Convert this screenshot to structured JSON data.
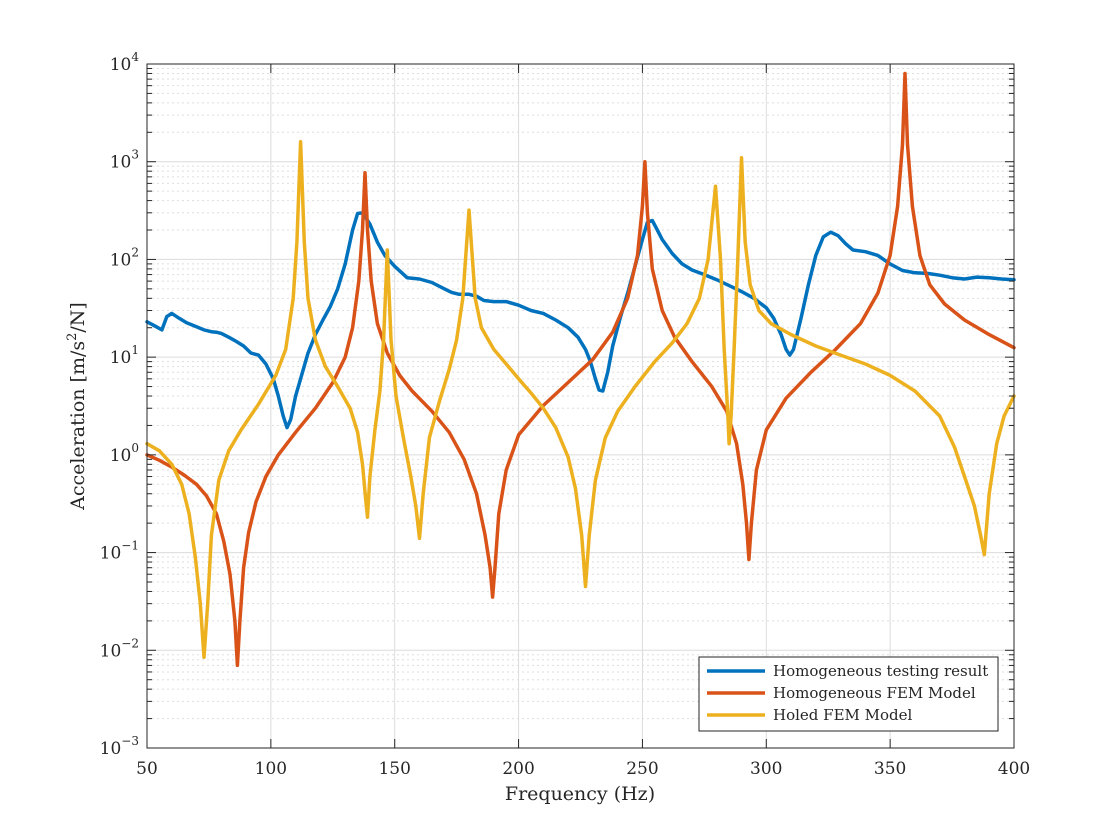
{
  "chart_data": {
    "type": "line",
    "title": "",
    "xlabel": "Frequency (Hz)",
    "ylabel": "Acceleration [m/s^2/N]",
    "ylabel_parts": {
      "main": "Acceleration [m/s",
      "sup": "2",
      "tail": "/N]"
    },
    "xscale": "linear",
    "yscale": "log",
    "xlim": [
      50,
      400
    ],
    "ylim": [
      0.001,
      10000
    ],
    "xticks": [
      50,
      100,
      150,
      200,
      250,
      300,
      350,
      400
    ],
    "yticks": [
      {
        "value": 0.001,
        "base": "10",
        "exp": "−3"
      },
      {
        "value": 0.01,
        "base": "10",
        "exp": "−2"
      },
      {
        "value": 0.1,
        "base": "10",
        "exp": "−1"
      },
      {
        "value": 1,
        "base": "10",
        "exp": "0"
      },
      {
        "value": 10,
        "base": "10",
        "exp": "1"
      },
      {
        "value": 100,
        "base": "10",
        "exp": "2"
      },
      {
        "value": 1000,
        "base": "10",
        "exp": "3"
      },
      {
        "value": 10000,
        "base": "10",
        "exp": "4"
      }
    ],
    "grid": true,
    "minor_grid": true,
    "legend_position": "bottom-right",
    "series": [
      {
        "name": "Homogeneous testing result",
        "color": "#0072BD",
        "points": [
          [
            50,
            23
          ],
          [
            53,
            21
          ],
          [
            56,
            19
          ],
          [
            58,
            26
          ],
          [
            60,
            28
          ],
          [
            63,
            25
          ],
          [
            66,
            22.5
          ],
          [
            70,
            20.5
          ],
          [
            73,
            19
          ],
          [
            76,
            18.2
          ],
          [
            78,
            18
          ],
          [
            80,
            17.5
          ],
          [
            83,
            16
          ],
          [
            86,
            14.5
          ],
          [
            89,
            13
          ],
          [
            92,
            11
          ],
          [
            95,
            10.5
          ],
          [
            98,
            8.5
          ],
          [
            101,
            6
          ],
          [
            103,
            4
          ],
          [
            105,
            2.5
          ],
          [
            106.5,
            1.9
          ],
          [
            108,
            2.3
          ],
          [
            110,
            4
          ],
          [
            112,
            6
          ],
          [
            115,
            11
          ],
          [
            118,
            17
          ],
          [
            121,
            24
          ],
          [
            124,
            33
          ],
          [
            127,
            50
          ],
          [
            130,
            90
          ],
          [
            133,
            200
          ],
          [
            135,
            295
          ],
          [
            137,
            300
          ],
          [
            140,
            230
          ],
          [
            143,
            150
          ],
          [
            146,
            110
          ],
          [
            150,
            85
          ],
          [
            155,
            65
          ],
          [
            160,
            63
          ],
          [
            165,
            58
          ],
          [
            170,
            50
          ],
          [
            173,
            46
          ],
          [
            176,
            44
          ],
          [
            180,
            44
          ],
          [
            183,
            42
          ],
          [
            186,
            38
          ],
          [
            190,
            37
          ],
          [
            195,
            37
          ],
          [
            200,
            34
          ],
          [
            205,
            30
          ],
          [
            210,
            28
          ],
          [
            215,
            24
          ],
          [
            220,
            20
          ],
          [
            224,
            16
          ],
          [
            227,
            12
          ],
          [
            229,
            9
          ],
          [
            231,
            6
          ],
          [
            232.5,
            4.6
          ],
          [
            234,
            4.5
          ],
          [
            236,
            7
          ],
          [
            238,
            13
          ],
          [
            241,
            25
          ],
          [
            244,
            45
          ],
          [
            247,
            85
          ],
          [
            250,
            160
          ],
          [
            252,
            240
          ],
          [
            254,
            250
          ],
          [
            256,
            200
          ],
          [
            258,
            160
          ],
          [
            262,
            115
          ],
          [
            266,
            90
          ],
          [
            270,
            78
          ],
          [
            275,
            70
          ],
          [
            280,
            62
          ],
          [
            285,
            54
          ],
          [
            290,
            47
          ],
          [
            295,
            40
          ],
          [
            300,
            32
          ],
          [
            303,
            25
          ],
          [
            306,
            17
          ],
          [
            308,
            12
          ],
          [
            309.5,
            10.5
          ],
          [
            311,
            12
          ],
          [
            314,
            25
          ],
          [
            317,
            55
          ],
          [
            320,
            110
          ],
          [
            323,
            170
          ],
          [
            326,
            190
          ],
          [
            329,
            175
          ],
          [
            332,
            145
          ],
          [
            335,
            125
          ],
          [
            340,
            120
          ],
          [
            345,
            110
          ],
          [
            350,
            90
          ],
          [
            355,
            77
          ],
          [
            360,
            73
          ],
          [
            365,
            72
          ],
          [
            370,
            69
          ],
          [
            375,
            65
          ],
          [
            380,
            63
          ],
          [
            385,
            66
          ],
          [
            390,
            65
          ],
          [
            395,
            63
          ],
          [
            400,
            62
          ]
        ]
      },
      {
        "name": "Homogeneous FEM Model",
        "color": "#D95319",
        "points": [
          [
            50,
            1.0
          ],
          [
            55,
            0.88
          ],
          [
            60,
            0.75
          ],
          [
            65,
            0.62
          ],
          [
            70,
            0.5
          ],
          [
            74,
            0.38
          ],
          [
            78,
            0.25
          ],
          [
            81,
            0.13
          ],
          [
            83.5,
            0.06
          ],
          [
            85.5,
            0.02
          ],
          [
            86.5,
            0.007
          ],
          [
            87.5,
            0.02
          ],
          [
            89,
            0.07
          ],
          [
            91,
            0.16
          ],
          [
            94,
            0.33
          ],
          [
            98,
            0.6
          ],
          [
            103,
            1.0
          ],
          [
            110,
            1.7
          ],
          [
            118,
            3.0
          ],
          [
            125,
            5.5
          ],
          [
            130,
            10
          ],
          [
            133,
            20
          ],
          [
            135.5,
            60
          ],
          [
            137,
            200
          ],
          [
            138,
            770
          ],
          [
            139,
            200
          ],
          [
            140.5,
            60
          ],
          [
            143,
            22
          ],
          [
            147,
            11
          ],
          [
            152,
            6.5
          ],
          [
            157,
            4.5
          ],
          [
            165,
            2.8
          ],
          [
            172,
            1.7
          ],
          [
            178,
            0.9
          ],
          [
            183,
            0.4
          ],
          [
            186.5,
            0.15
          ],
          [
            188.5,
            0.07
          ],
          [
            189.5,
            0.035
          ],
          [
            190.5,
            0.07
          ],
          [
            192,
            0.25
          ],
          [
            195,
            0.7
          ],
          [
            200,
            1.6
          ],
          [
            210,
            3.2
          ],
          [
            220,
            5.5
          ],
          [
            230,
            9.5
          ],
          [
            238,
            18
          ],
          [
            244,
            40
          ],
          [
            248,
            110
          ],
          [
            250,
            350
          ],
          [
            251,
            1000
          ],
          [
            252,
            300
          ],
          [
            254,
            80
          ],
          [
            258,
            30
          ],
          [
            263,
            16
          ],
          [
            270,
            9
          ],
          [
            278,
            5
          ],
          [
            284,
            2.8
          ],
          [
            288,
            1.3
          ],
          [
            290.5,
            0.5
          ],
          [
            292,
            0.2
          ],
          [
            293,
            0.085
          ],
          [
            294,
            0.2
          ],
          [
            296,
            0.7
          ],
          [
            300,
            1.8
          ],
          [
            308,
            3.8
          ],
          [
            318,
            7
          ],
          [
            328,
            12
          ],
          [
            338,
            22
          ],
          [
            345,
            45
          ],
          [
            350,
            110
          ],
          [
            353,
            350
          ],
          [
            355,
            1500
          ],
          [
            356,
            8000
          ],
          [
            357,
            1500
          ],
          [
            359,
            350
          ],
          [
            362,
            110
          ],
          [
            366,
            55
          ],
          [
            372,
            35
          ],
          [
            380,
            24
          ],
          [
            390,
            17
          ],
          [
            400,
            12.5
          ]
        ]
      },
      {
        "name": "Holed FEM Model",
        "color": "#EDB120",
        "points": [
          [
            50,
            1.3
          ],
          [
            55,
            1.1
          ],
          [
            60,
            0.8
          ],
          [
            64,
            0.5
          ],
          [
            67,
            0.25
          ],
          [
            69.5,
            0.09
          ],
          [
            71.5,
            0.03
          ],
          [
            73,
            0.0085
          ],
          [
            74.5,
            0.03
          ],
          [
            76,
            0.15
          ],
          [
            79,
            0.55
          ],
          [
            83,
            1.1
          ],
          [
            88,
            1.8
          ],
          [
            95,
            3.3
          ],
          [
            102,
            6.5
          ],
          [
            106,
            12
          ],
          [
            109,
            40
          ],
          [
            110.5,
            150
          ],
          [
            112,
            1600
          ],
          [
            113.5,
            150
          ],
          [
            115,
            40
          ],
          [
            118,
            15
          ],
          [
            122,
            8
          ],
          [
            127,
            5
          ],
          [
            132,
            3
          ],
          [
            135,
            1.7
          ],
          [
            137,
            0.8
          ],
          [
            138.3,
            0.35
          ],
          [
            139,
            0.23
          ],
          [
            140,
            0.6
          ],
          [
            142,
            1.8
          ],
          [
            144,
            4.5
          ],
          [
            145.5,
            15
          ],
          [
            147,
            125
          ],
          [
            148.5,
            15
          ],
          [
            150.5,
            4
          ],
          [
            153.5,
            1.5
          ],
          [
            156.5,
            0.6
          ],
          [
            158.5,
            0.3
          ],
          [
            160,
            0.14
          ],
          [
            161.5,
            0.4
          ],
          [
            164,
            1.5
          ],
          [
            168,
            3.5
          ],
          [
            172,
            7.5
          ],
          [
            175,
            15
          ],
          [
            177.5,
            40
          ],
          [
            180,
            320
          ],
          [
            182.5,
            40
          ],
          [
            185,
            20
          ],
          [
            190,
            12
          ],
          [
            195,
            8.5
          ],
          [
            200,
            6
          ],
          [
            205,
            4.3
          ],
          [
            210,
            3
          ],
          [
            215,
            1.9
          ],
          [
            220,
            0.95
          ],
          [
            223,
            0.45
          ],
          [
            225.5,
            0.15
          ],
          [
            227,
            0.045
          ],
          [
            228.5,
            0.15
          ],
          [
            231,
            0.55
          ],
          [
            235,
            1.5
          ],
          [
            240,
            2.8
          ],
          [
            247,
            5
          ],
          [
            255,
            9
          ],
          [
            262,
            14
          ],
          [
            268,
            22
          ],
          [
            273,
            40
          ],
          [
            276.5,
            100
          ],
          [
            279.5,
            560
          ],
          [
            281.5,
            100
          ],
          [
            283,
            12
          ],
          [
            284.5,
            2.5
          ],
          [
            285,
            1.3
          ],
          [
            285.8,
            2.5
          ],
          [
            287,
            12
          ],
          [
            288.5,
            100
          ],
          [
            290,
            1100
          ],
          [
            291.5,
            150
          ],
          [
            293.5,
            55
          ],
          [
            297,
            30
          ],
          [
            302,
            22
          ],
          [
            310,
            17
          ],
          [
            320,
            13
          ],
          [
            330,
            10.5
          ],
          [
            340,
            8.5
          ],
          [
            350,
            6.5
          ],
          [
            360,
            4.5
          ],
          [
            370,
            2.5
          ],
          [
            376,
            1.2
          ],
          [
            380,
            0.6
          ],
          [
            384,
            0.3
          ],
          [
            386.5,
            0.15
          ],
          [
            388,
            0.095
          ],
          [
            390,
            0.4
          ],
          [
            393,
            1.3
          ],
          [
            396,
            2.5
          ],
          [
            400,
            4
          ]
        ]
      }
    ]
  }
}
